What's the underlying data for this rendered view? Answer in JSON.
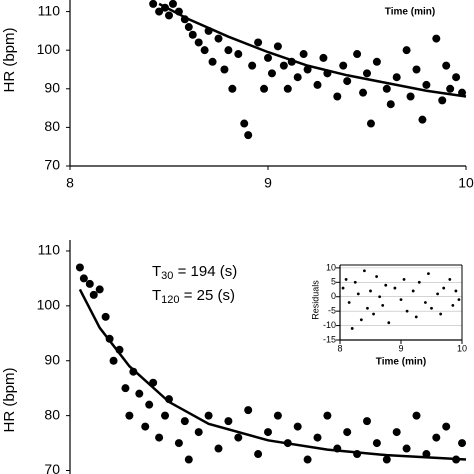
{
  "chart_data": [
    {
      "type": "scatter",
      "y_label": "HR (bpm)",
      "annotation": "Time (min)",
      "xlim": [
        8,
        10
      ],
      "xticks": [
        8,
        9,
        10
      ],
      "ylim": [
        70,
        113
      ],
      "yticks": [
        70,
        80,
        90,
        100,
        110
      ],
      "series": [
        {
          "mode": "markers",
          "color": "#000000",
          "x": [
            8.42,
            8.45,
            8.48,
            8.5,
            8.52,
            8.55,
            8.58,
            8.6,
            8.62,
            8.65,
            8.68,
            8.7,
            8.72,
            8.75,
            8.78,
            8.8,
            8.82,
            8.85,
            8.88,
            8.9,
            8.92,
            8.95,
            8.98,
            9.0,
            9.02,
            9.05,
            9.08,
            9.1,
            9.12,
            9.15,
            9.18,
            9.2,
            9.25,
            9.28,
            9.3,
            9.35,
            9.38,
            9.4,
            9.45,
            9.48,
            9.5,
            9.52,
            9.55,
            9.6,
            9.62,
            9.65,
            9.7,
            9.72,
            9.75,
            9.78,
            9.8,
            9.85,
            9.88,
            9.9,
            9.92,
            9.95,
            9.98
          ],
          "values": [
            112,
            110,
            111,
            109,
            112,
            110,
            108,
            106,
            104,
            102,
            100,
            105,
            97,
            103,
            95,
            100,
            90,
            99,
            81,
            78,
            96,
            102,
            90,
            98,
            94,
            101,
            96,
            90,
            97,
            93,
            99,
            95,
            91,
            98,
            94,
            88,
            96,
            92,
            99,
            89,
            94,
            81,
            97,
            90,
            86,
            93,
            100,
            88,
            95,
            82,
            91,
            103,
            87,
            96,
            90,
            93,
            89
          ]
        },
        {
          "mode": "line",
          "color": "#000000",
          "x": [
            8.45,
            8.6,
            8.8,
            9,
            9.2,
            9.4,
            9.6,
            9.8,
            10
          ],
          "values": [
            112,
            108,
            103.5,
            99.5,
            96,
            93.5,
            91.5,
            89.5,
            88
          ]
        }
      ]
    },
    {
      "type": "scatter",
      "y_label": "HR (bpm)",
      "annotations": [
        {
          "base": "T",
          "sub": "30",
          "rest": " = 194 (s)"
        },
        {
          "base": "T",
          "sub": "120",
          "rest": " =  25 (s)"
        }
      ],
      "xlim": [
        8,
        10
      ],
      "ylim": [
        69,
        112
      ],
      "yticks": [
        70,
        80,
        90,
        100,
        110
      ],
      "series": [
        {
          "mode": "markers",
          "color": "#000000",
          "x": [
            8.05,
            8.07,
            8.1,
            8.12,
            8.15,
            8.18,
            8.2,
            8.22,
            8.25,
            8.28,
            8.3,
            8.32,
            8.35,
            8.38,
            8.4,
            8.42,
            8.45,
            8.48,
            8.5,
            8.55,
            8.58,
            8.6,
            8.65,
            8.7,
            8.75,
            8.8,
            8.85,
            8.9,
            8.95,
            9.0,
            9.05,
            9.1,
            9.15,
            9.2,
            9.25,
            9.3,
            9.35,
            9.4,
            9.45,
            9.5,
            9.55,
            9.6,
            9.65,
            9.7,
            9.75,
            9.8,
            9.85,
            9.9,
            9.95,
            9.98
          ],
          "values": [
            107,
            105,
            104,
            102,
            103,
            98,
            94,
            90,
            92,
            85,
            80,
            88,
            84,
            78,
            82,
            86,
            76,
            80,
            83,
            75,
            79,
            72,
            77,
            80,
            74,
            79,
            76,
            81,
            73,
            77,
            80,
            75,
            78,
            72,
            76,
            80,
            74,
            77,
            73,
            79,
            75,
            72,
            77,
            74,
            80,
            73,
            76,
            78,
            72,
            75
          ]
        },
        {
          "mode": "line",
          "color": "#000000",
          "x": [
            8.05,
            8.15,
            8.3,
            8.5,
            8.7,
            9,
            9.3,
            9.6,
            10
          ],
          "values": [
            103,
            96,
            89,
            82.5,
            78.5,
            75.5,
            73.8,
            72.8,
            72
          ]
        }
      ]
    },
    {
      "type": "scatter",
      "y_label": "Residuals",
      "x_label": "Time (min)",
      "xlim": [
        8,
        10
      ],
      "xticks": [
        8,
        9,
        10
      ],
      "ylim": [
        -15,
        11
      ],
      "yticks": [
        -15,
        -10,
        -5,
        0,
        5,
        10
      ],
      "grid": true,
      "series": [
        {
          "mode": "markers",
          "color": "#000000",
          "x": [
            8.05,
            8.1,
            8.15,
            8.2,
            8.25,
            8.3,
            8.35,
            8.4,
            8.45,
            8.5,
            8.55,
            8.6,
            8.65,
            8.7,
            8.75,
            8.8,
            8.9,
            9.0,
            9.05,
            9.1,
            9.2,
            9.25,
            9.3,
            9.4,
            9.45,
            9.5,
            9.6,
            9.65,
            9.7,
            9.8,
            9.85,
            9.9,
            9.95
          ],
          "values": [
            3,
            6,
            -2,
            -11,
            5,
            1,
            -8,
            9,
            -4,
            2,
            -6,
            7,
            0,
            -3,
            4,
            -9,
            3,
            -1,
            6,
            -5,
            2,
            -7,
            5,
            -2,
            8,
            -4,
            1,
            -6,
            3,
            6,
            -3,
            2,
            -1
          ]
        }
      ]
    }
  ]
}
